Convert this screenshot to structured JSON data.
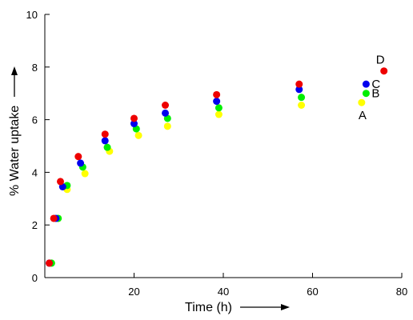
{
  "chart_data": {
    "type": "scatter",
    "xlabel": "Time (h)",
    "ylabel": "% Water uptake",
    "xlim": [
      0,
      80
    ],
    "ylim": [
      0,
      10
    ],
    "x_ticks": [
      20,
      40,
      60,
      80
    ],
    "y_ticks": [
      0,
      2,
      4,
      6,
      8,
      10
    ],
    "grid": false,
    "series": [
      {
        "name": "A",
        "color": "#ffff00",
        "x": [
          1.5,
          3,
          5,
          9,
          14.5,
          21,
          27.5,
          39,
          57.5,
          71
        ],
        "y": [
          0.55,
          2.25,
          3.35,
          3.95,
          4.8,
          5.4,
          5.75,
          6.2,
          6.55,
          6.65
        ]
      },
      {
        "name": "B",
        "color": "#00ee00",
        "x": [
          1.5,
          3,
          5,
          8.5,
          14,
          20.5,
          27.5,
          39,
          57.5,
          72
        ],
        "y": [
          0.55,
          2.25,
          3.5,
          4.2,
          4.95,
          5.65,
          6.05,
          6.45,
          6.85,
          7.0
        ]
      },
      {
        "name": "C",
        "color": "#0000ee",
        "x": [
          1,
          2.5,
          4,
          8,
          13.5,
          20,
          27,
          38.5,
          57,
          72
        ],
        "y": [
          0.55,
          2.25,
          3.45,
          4.35,
          5.2,
          5.85,
          6.25,
          6.7,
          7.15,
          7.35
        ]
      },
      {
        "name": "D",
        "color": "#ee0000",
        "x": [
          1,
          2,
          3.5,
          7.5,
          13.5,
          20,
          27,
          38.5,
          57,
          76
        ],
        "y": [
          0.55,
          2.25,
          3.65,
          4.6,
          5.45,
          6.05,
          6.55,
          6.95,
          7.35,
          7.85
        ]
      }
    ]
  }
}
